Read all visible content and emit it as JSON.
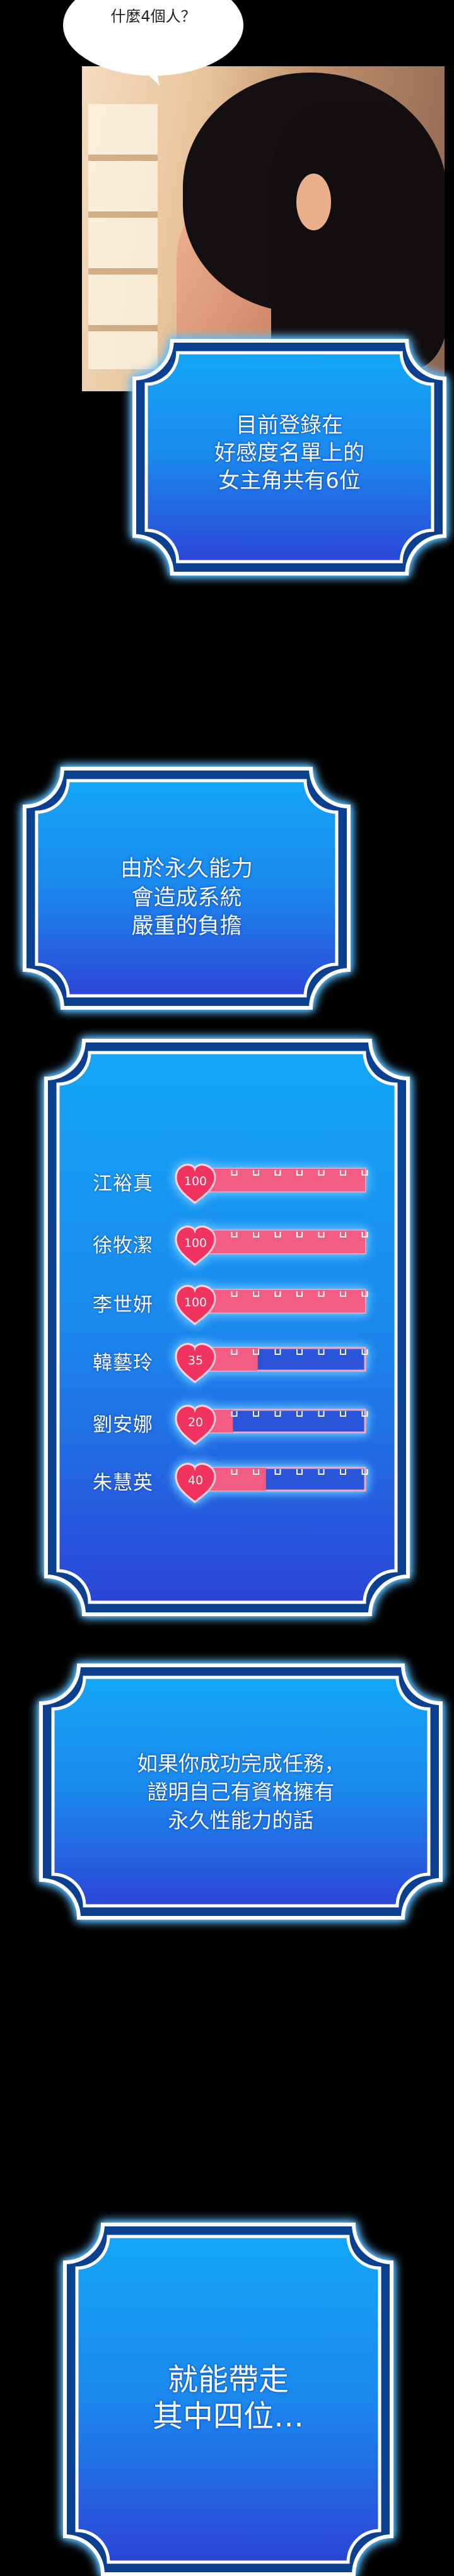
{
  "speech_bubble": {
    "text": "什麼4個人？"
  },
  "panels": [
    {
      "id": "roster-count",
      "lines": [
        "目前登錄在",
        "好感度名單上的",
        "女主角共有6位"
      ]
    },
    {
      "id": "system-burden",
      "lines": [
        "由於永久能力",
        "會造成系統",
        "嚴重的負擔"
      ]
    },
    {
      "id": "mission-condition",
      "lines": [
        "如果你成功完成任務，",
        "證明自己有資格擁有",
        "永久性能力的話"
      ]
    },
    {
      "id": "take-four",
      "lines": [
        "就能帶走",
        "其中四位…"
      ]
    }
  ],
  "affection": {
    "max": 100,
    "heart_color": "#f0335f",
    "fill_color": "#f25c85",
    "entries": [
      {
        "name": "江裕真",
        "value": 100
      },
      {
        "name": "徐牧潔",
        "value": 100
      },
      {
        "name": "李世妍",
        "value": 100
      },
      {
        "name": "韓藝玲",
        "value": 35
      },
      {
        "name": "劉安娜",
        "value": 20
      },
      {
        "name": "朱慧英",
        "value": 40
      }
    ]
  },
  "colors": {
    "panel_top": "#13a6f6",
    "panel_bottom": "#2b45d6",
    "frame_dark": "#0b3f8f",
    "frame_line": "#ffffff"
  }
}
